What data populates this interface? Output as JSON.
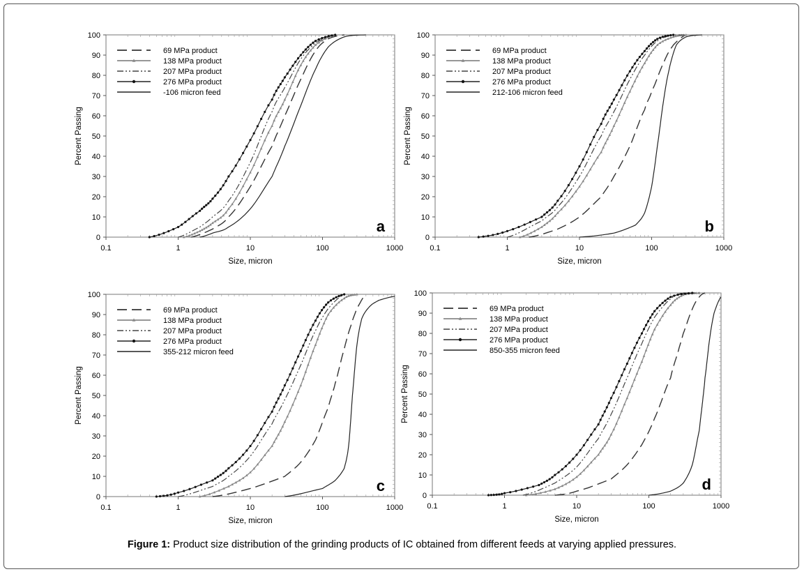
{
  "caption": {
    "label": "Figure 1:",
    "text": " Product size distribution of the grinding products of IC obtained from different feeds at varying applied pressures."
  },
  "chart_data": [
    {
      "type": "line",
      "panel_label": "a",
      "xlabel": "Size, micron",
      "ylabel": "Percent Passing",
      "xscale": "log",
      "xlim": [
        0.1,
        1000
      ],
      "ylim": [
        0,
        100
      ],
      "xticks": [
        "0.1",
        "1",
        "10",
        "100",
        "1000"
      ],
      "yticks": [
        "0",
        "10",
        "20",
        "30",
        "40",
        "50",
        "60",
        "70",
        "80",
        "90",
        "100"
      ],
      "legend_position": "top-left",
      "series": [
        {
          "name": "69 MPa product",
          "style": "long-dash",
          "x": [
            1.5,
            3,
            5,
            10,
            20,
            30,
            50,
            80,
            120,
            200
          ],
          "y": [
            0,
            4,
            10,
            25,
            45,
            60,
            78,
            92,
            98,
            100
          ]
        },
        {
          "name": "138 MPa product",
          "style": "gray-triangle",
          "x": [
            1.2,
            2,
            3,
            5,
            10,
            20,
            30,
            50,
            80,
            150
          ],
          "y": [
            0,
            3,
            7,
            14,
            32,
            55,
            68,
            85,
            95,
            100
          ]
        },
        {
          "name": "207 MPa product",
          "style": "dash-dot-dot",
          "x": [
            1,
            2,
            3,
            5,
            10,
            20,
            30,
            50,
            80,
            150
          ],
          "y": [
            0,
            5,
            10,
            18,
            37,
            62,
            74,
            88,
            96,
            100
          ]
        },
        {
          "name": "276 MPa product",
          "style": "dotted-marker",
          "x": [
            0.4,
            1,
            2,
            3,
            5,
            10,
            20,
            30,
            50,
            80,
            150
          ],
          "y": [
            0,
            5,
            13,
            19,
            30,
            48,
            68,
            79,
            90,
            97,
            100
          ]
        },
        {
          "name": "-106 micron feed",
          "style": "solid",
          "x": [
            2,
            3,
            5,
            10,
            20,
            30,
            50,
            80,
            120,
            200,
            400
          ],
          "y": [
            0,
            2,
            5,
            14,
            30,
            45,
            65,
            83,
            94,
            99,
            100
          ]
        }
      ]
    },
    {
      "type": "line",
      "panel_label": "b",
      "xlabel": "Size,  micron",
      "ylabel": "Percent Passing",
      "xscale": "log",
      "xlim": [
        0.1,
        1000
      ],
      "ylim": [
        0,
        100
      ],
      "xticks": [
        "0.1",
        "1",
        "10",
        "100",
        "1000"
      ],
      "yticks": [
        "0",
        "10",
        "20",
        "30",
        "40",
        "50",
        "60",
        "70",
        "80",
        "90",
        "100"
      ],
      "legend_position": "top-left",
      "series": [
        {
          "name": "69 MPa product",
          "style": "long-dash",
          "x": [
            2,
            5,
            10,
            20,
            30,
            50,
            80,
            100,
            150,
            200,
            300
          ],
          "y": [
            0,
            4,
            10,
            20,
            30,
            45,
            63,
            72,
            87,
            95,
            100
          ]
        },
        {
          "name": "138 MPa product",
          "style": "gray-triangle",
          "x": [
            1.5,
            3,
            5,
            10,
            20,
            30,
            50,
            80,
            120,
            200,
            300
          ],
          "y": [
            0,
            5,
            12,
            25,
            42,
            55,
            72,
            86,
            95,
            99,
            100
          ]
        },
        {
          "name": "207 MPa product",
          "style": "dash-dot-dot",
          "x": [
            1,
            3,
            5,
            10,
            20,
            30,
            50,
            80,
            120,
            200,
            300
          ],
          "y": [
            0,
            8,
            15,
            30,
            50,
            62,
            78,
            90,
            97,
            100,
            100
          ]
        },
        {
          "name": "276 MPa product",
          "style": "dotted-marker",
          "x": [
            0.4,
            1,
            3,
            5,
            10,
            20,
            30,
            50,
            80,
            120,
            200
          ],
          "y": [
            0,
            3,
            10,
            18,
            35,
            56,
            68,
            82,
            92,
            98,
            100
          ]
        },
        {
          "name": "212-106 micron feed",
          "style": "solid",
          "x": [
            10,
            30,
            60,
            80,
            100,
            120,
            150,
            180,
            220,
            300,
            500
          ],
          "y": [
            0,
            2,
            6,
            12,
            25,
            45,
            70,
            85,
            95,
            99,
            100
          ]
        }
      ]
    },
    {
      "type": "line",
      "panel_label": "c",
      "xlabel": "Size, micron",
      "ylabel": "Percent Passing",
      "xscale": "log",
      "xlim": [
        0.1,
        1000
      ],
      "ylim": [
        0,
        100
      ],
      "xticks": [
        "0.1",
        "1",
        "10",
        "100",
        "1000"
      ],
      "yticks": [
        "0",
        "10",
        "20",
        "30",
        "40",
        "50",
        "60",
        "70",
        "80",
        "90",
        "100"
      ],
      "legend_position": "top-left",
      "series": [
        {
          "name": "69 MPa product",
          "style": "long-dash",
          "x": [
            3,
            10,
            30,
            50,
            80,
            120,
            150,
            200,
            250,
            300,
            400
          ],
          "y": [
            0,
            4,
            10,
            17,
            28,
            44,
            56,
            73,
            85,
            93,
            100
          ]
        },
        {
          "name": "138 MPa product",
          "style": "gray-triangle",
          "x": [
            2,
            5,
            10,
            20,
            30,
            50,
            80,
            120,
            200,
            300
          ],
          "y": [
            0,
            5,
            12,
            25,
            37,
            55,
            75,
            90,
            98,
            100
          ]
        },
        {
          "name": "207 MPa product",
          "style": "dash-dot-dot",
          "x": [
            1,
            3,
            5,
            10,
            20,
            30,
            50,
            80,
            120,
            200
          ],
          "y": [
            0,
            5,
            10,
            20,
            36,
            48,
            65,
            82,
            93,
            100
          ]
        },
        {
          "name": "276 MPa product",
          "style": "dotted-marker",
          "x": [
            0.5,
            1,
            3,
            5,
            10,
            20,
            30,
            50,
            80,
            120,
            200
          ],
          "y": [
            0,
            2,
            8,
            14,
            25,
            42,
            55,
            72,
            87,
            96,
            100
          ]
        },
        {
          "name": "355-212 micron feed",
          "style": "solid",
          "x": [
            30,
            100,
            150,
            200,
            230,
            260,
            300,
            350,
            450,
            600,
            1000
          ],
          "y": [
            0,
            4,
            8,
            14,
            25,
            50,
            75,
            88,
            94,
            97,
            99
          ]
        }
      ]
    },
    {
      "type": "line",
      "panel_label": "d",
      "xlabel": "Size, micron",
      "ylabel": "Percent Passing",
      "xscale": "log",
      "xlim": [
        0.1,
        1000
      ],
      "ylim": [
        0,
        100
      ],
      "xticks": [
        "0.1",
        "1",
        "10",
        "100",
        "1000"
      ],
      "yticks": [
        "0",
        "10",
        "20",
        "30",
        "40",
        "50",
        "60",
        "70",
        "80",
        "90",
        "100"
      ],
      "legend_position": "top-left",
      "series": [
        {
          "name": "69 MPa product",
          "style": "long-dash",
          "x": [
            5,
            10,
            30,
            50,
            80,
            120,
            200,
            250,
            300,
            400,
            500,
            600
          ],
          "y": [
            0,
            2,
            8,
            15,
            25,
            38,
            58,
            70,
            80,
            92,
            98,
            100
          ]
        },
        {
          "name": "138 MPa product",
          "style": "gray-triangle",
          "x": [
            2,
            5,
            10,
            20,
            30,
            50,
            80,
            120,
            200,
            300,
            500
          ],
          "y": [
            0,
            3,
            9,
            20,
            30,
            48,
            66,
            82,
            94,
            99,
            100
          ]
        },
        {
          "name": "207 MPa product",
          "style": "dash-dot-dot",
          "x": [
            1.8,
            5,
            10,
            20,
            30,
            50,
            80,
            120,
            200,
            300,
            500
          ],
          "y": [
            0,
            6,
            14,
            28,
            40,
            58,
            75,
            88,
            97,
            100,
            100
          ]
        },
        {
          "name": "276 MPa product",
          "style": "dotted-marker",
          "x": [
            0.6,
            1,
            3,
            5,
            10,
            20,
            30,
            50,
            80,
            120,
            200,
            400
          ],
          "y": [
            0,
            1,
            5,
            10,
            20,
            35,
            48,
            65,
            80,
            91,
            98,
            100
          ]
        },
        {
          "name": "850-355 micron feed",
          "style": "solid",
          "x": [
            100,
            200,
            300,
            400,
            500,
            550,
            600,
            700,
            800,
            1000
          ],
          "y": [
            0,
            2,
            6,
            15,
            32,
            45,
            58,
            78,
            90,
            98
          ]
        }
      ]
    }
  ]
}
